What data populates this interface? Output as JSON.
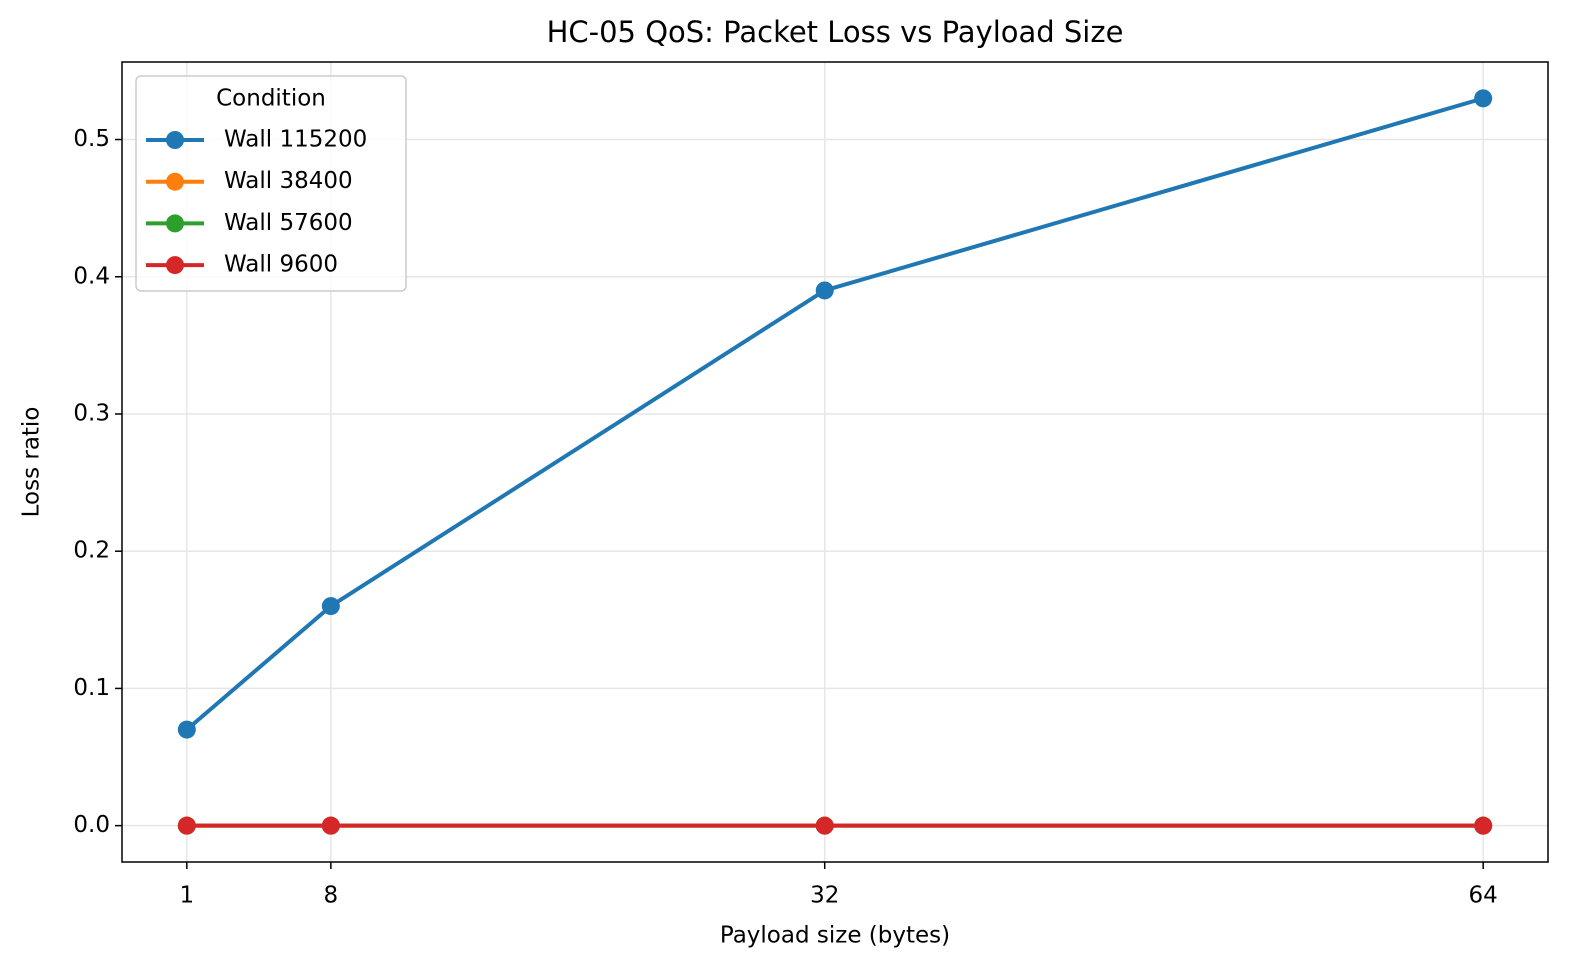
{
  "chart_data": {
    "type": "line",
    "title": "HC-05 QoS: Packet Loss vs Payload Size",
    "x_label": "Payload size (bytes)",
    "y_label": "Loss ratio",
    "x": [
      1,
      8,
      32,
      64
    ],
    "series": [
      {
        "name": "Wall 115200",
        "color": "#1f77b4",
        "values": [
          0.07,
          0.16,
          0.39,
          0.53
        ]
      },
      {
        "name": "Wall 38400",
        "color": "#ff7f0e",
        "values": [
          0,
          0,
          0,
          0
        ]
      },
      {
        "name": "Wall 57600",
        "color": "#2ca02c",
        "values": [
          0,
          0,
          0,
          0
        ]
      },
      {
        "name": "Wall 9600",
        "color": "#d62728",
        "values": [
          0,
          0,
          0,
          0
        ]
      }
    ],
    "legend_title": "Condition",
    "legend": "upper left",
    "xlim": [
      -2.15,
      67.15
    ],
    "ylim": [
      -0.0265,
      0.5565
    ],
    "xticks": [
      1,
      8,
      32,
      64
    ],
    "yticks": [
      {
        "value": 0,
        "label": "0.0"
      },
      0.1,
      0.2,
      0.3,
      0.4,
      0.5
    ],
    "grid": true
  }
}
